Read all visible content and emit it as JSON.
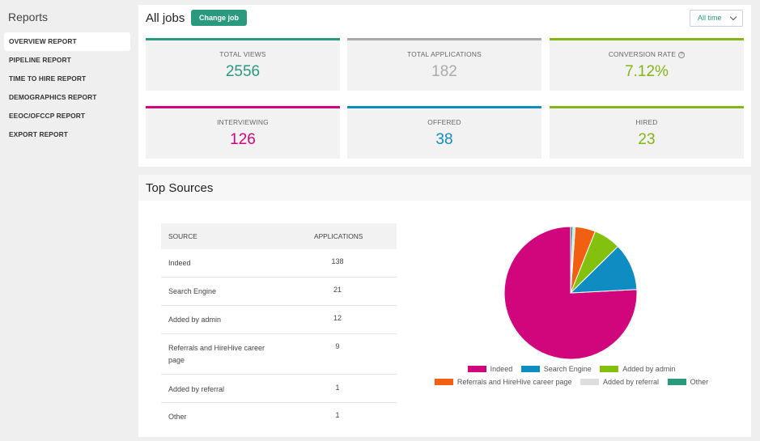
{
  "sidebar": {
    "title": "Reports",
    "items": [
      {
        "label": "OVERVIEW REPORT",
        "active": true
      },
      {
        "label": "PIPELINE REPORT"
      },
      {
        "label": "TIME TO HIRE REPORT"
      },
      {
        "label": "DEMOGRAPHICS REPORT"
      },
      {
        "label": "EEOC/OFCCP REPORT"
      },
      {
        "label": "EXPORT REPORT"
      }
    ]
  },
  "jobs": {
    "title": "All jobs",
    "change_job_label": "Change job",
    "time_filter": "All time"
  },
  "stats": [
    {
      "label": "TOTAL VIEWS",
      "value": "2556",
      "color": "#2a9a7e"
    },
    {
      "label": "TOTAL APPLICATIONS",
      "value": "182",
      "color": "#aaaaaa"
    },
    {
      "label": "CONVERSION RATE",
      "value": "7.12%",
      "color": "#84b417",
      "help": "?"
    },
    {
      "label": "INTERVIEWING",
      "value": "126",
      "color": "#d1057c"
    },
    {
      "label": "OFFERED",
      "value": "38",
      "color": "#0f8dc3"
    },
    {
      "label": "HIRED",
      "value": "23",
      "color": "#84b417"
    }
  ],
  "sources": {
    "title": "Top Sources",
    "columns": {
      "source": "SOURCE",
      "applications": "APPLICATIONS"
    },
    "rows": [
      {
        "source": "Indeed",
        "applications": "138"
      },
      {
        "source": "Search Engine",
        "applications": "21"
      },
      {
        "source": "Added by admin",
        "applications": "12"
      },
      {
        "source": "Referrals and HireHive career page",
        "applications": "9"
      },
      {
        "source": "Added by referral",
        "applications": "1"
      },
      {
        "source": "Other",
        "applications": "1"
      }
    ]
  },
  "chart_data": {
    "type": "pie",
    "labels": [
      "Indeed",
      "Search Engine",
      "Added by admin",
      "Referrals and HireHive career page",
      "Added by referral",
      "Other"
    ],
    "values": [
      138,
      21,
      12,
      9,
      1,
      1
    ],
    "colors": [
      "#d1057c",
      "#0f8dc3",
      "#84c10f",
      "#f06010",
      "#dddddd",
      "#2a9a7e"
    ],
    "legend_position": "bottom"
  }
}
